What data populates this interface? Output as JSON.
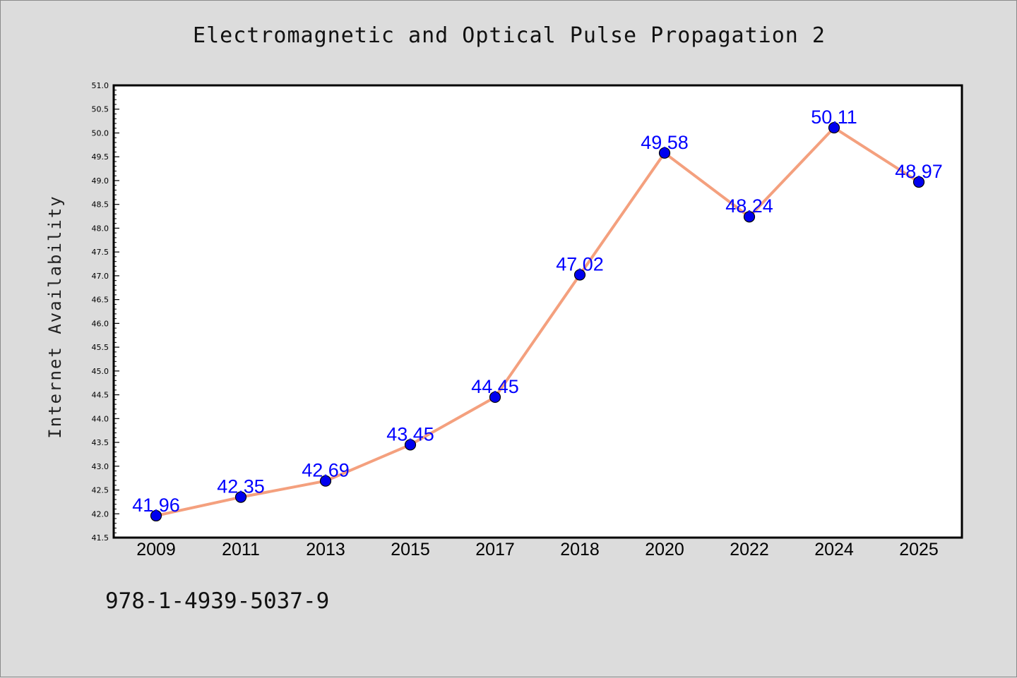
{
  "chart_data": {
    "type": "line",
    "title": "Electromagnetic and Optical Pulse Propagation 2",
    "xlabel": "",
    "ylabel": "Internet Availability",
    "categories": [
      "2009",
      "2011",
      "2013",
      "2015",
      "2017",
      "2018",
      "2020",
      "2022",
      "2024",
      "2025"
    ],
    "series": [
      {
        "values": [
          41.96,
          42.35,
          42.69,
          43.45,
          44.45,
          47.02,
          49.58,
          48.24,
          50.11,
          48.97
        ]
      }
    ],
    "data_labels": [
      "41.96",
      "42.35",
      "42.69",
      "43.45",
      "44.45",
      "47.02",
      "49.58",
      "48.24",
      "50.11",
      "48.97"
    ],
    "ylim": [
      41.5,
      51.0
    ],
    "yticks": [
      "41.5",
      "42.0",
      "42.5",
      "43.0",
      "43.5",
      "44.0",
      "44.5",
      "45.0",
      "45.5",
      "46.0",
      "46.5",
      "47.0",
      "47.5",
      "48.0",
      "48.5",
      "49.0",
      "49.5",
      "50.0",
      "50.5",
      "51.0"
    ],
    "grid": false,
    "legend": "none",
    "line_color": "#f4a07e",
    "marker_color": "#0000ee",
    "label_color": "#0000ff"
  },
  "footer": {
    "isbn": "978-1-4939-5037-9"
  }
}
